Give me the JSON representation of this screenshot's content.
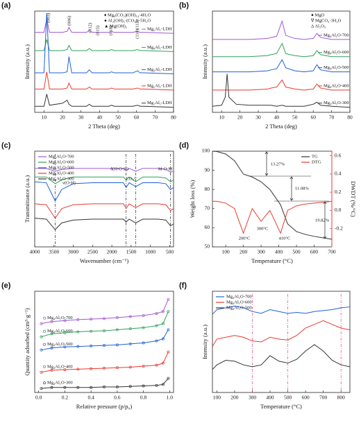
{
  "chart_data": [
    {
      "type": "line",
      "label": "(a)",
      "xlabel": "2 Theta (deg)",
      "ylabel": "Intensity (a.u.)",
      "xlim": [
        5,
        80
      ],
      "xticks": [
        10,
        20,
        30,
        40,
        50,
        60,
        70,
        80
      ],
      "ylim": [
        0,
        100
      ],
      "legend": "curve-end",
      "x": [
        5,
        10,
        11.5,
        13,
        20,
        22.5,
        23.5,
        25,
        33,
        34.5,
        36,
        38.5,
        45,
        46.5,
        48,
        58,
        60.5,
        62,
        64,
        80
      ],
      "series": [
        {
          "name": "Mg₅Al₁-LDH",
          "color": "#a056d6",
          "values": [
            79,
            79,
            92,
            79,
            79,
            80,
            84,
            79,
            79,
            81,
            79,
            79,
            79,
            80,
            79,
            79,
            80,
            79,
            79,
            78
          ]
        },
        {
          "name": "Mg₄Al₁-LDH",
          "color": "#2ca05a",
          "values": [
            61,
            61,
            72,
            61,
            61,
            62,
            66,
            61,
            61,
            63,
            61,
            61,
            61,
            62,
            61,
            61,
            62,
            61,
            61,
            60
          ]
        },
        {
          "name": "Mg₃Al₁-LDH",
          "color": "#1f5fd6",
          "values": [
            39,
            39,
            98,
            39,
            39,
            40,
            55,
            39,
            39,
            42,
            39,
            39,
            39,
            40,
            39,
            39,
            41,
            39,
            39,
            38
          ]
        },
        {
          "name": "Mg₂Al₁-LDH",
          "color": "#e8392f",
          "values": [
            23,
            23,
            40,
            23,
            23,
            24,
            29,
            23,
            23,
            25,
            23,
            23,
            23,
            24,
            23,
            23,
            24,
            23,
            23,
            22
          ]
        },
        {
          "name": "Mg₁Al₁-LDH",
          "color": "#333333",
          "values": [
            6,
            6,
            18,
            7,
            9,
            12,
            8,
            6,
            6,
            8,
            6,
            6,
            6,
            7,
            6,
            6,
            7,
            6,
            6,
            5
          ]
        }
      ],
      "annotations": [
        "♦ Mg₆(CO₃)(OH)₁₄·4H₂O",
        "● Al₂(OH)₅·(CO₃)₂·5H₂O",
        "▲ Mg(OH)₂",
        "(003)",
        "(006)",
        "(012)",
        "(015)",
        "(018)",
        "(110)(113)"
      ]
    },
    {
      "type": "line",
      "label": "(b)",
      "xlabel": "2 Theta (deg)",
      "ylabel": "Intensity (a.u.)",
      "xlim": [
        5,
        80
      ],
      "xticks": [
        10,
        20,
        30,
        40,
        50,
        60,
        70,
        80
      ],
      "ylim": [
        0,
        100
      ],
      "legend": "curve-end",
      "x": [
        5,
        10,
        12,
        13,
        14,
        18,
        25,
        35,
        37,
        40,
        43,
        45,
        50,
        55,
        60,
        62,
        64,
        70,
        80
      ],
      "series": [
        {
          "name": "Mg₄Al₁O-700",
          "color": "#a056d6",
          "values": [
            72,
            72,
            72,
            72,
            72,
            72,
            72,
            73,
            74,
            75,
            90,
            76,
            73,
            72,
            73,
            78,
            74,
            72,
            72
          ]
        },
        {
          "name": "Mg₄Al₁O-600",
          "color": "#2ca05a",
          "values": [
            55,
            55,
            55,
            55,
            55,
            55,
            55,
            56,
            57,
            58,
            68,
            58,
            56,
            55,
            56,
            61,
            57,
            55,
            55
          ]
        },
        {
          "name": "Mg₄Al₁O-500",
          "color": "#1f5fd6",
          "values": [
            40,
            40,
            40,
            40,
            40,
            40,
            40,
            41,
            42,
            43,
            52,
            44,
            41,
            40,
            41,
            47,
            42,
            40,
            40
          ]
        },
        {
          "name": "Mg₄Al₁O-400",
          "color": "#e8392f",
          "values": [
            22,
            22,
            22,
            22,
            22,
            22,
            22,
            23,
            24,
            25,
            32,
            25,
            23,
            22,
            23,
            28,
            24,
            22,
            22
          ]
        },
        {
          "name": "Mg₄Al₁O-300",
          "color": "#333333",
          "values": [
            6,
            7,
            15,
            38,
            15,
            8,
            7,
            7,
            7,
            6,
            7,
            6,
            6,
            6,
            8,
            10,
            7,
            6,
            5
          ]
        }
      ],
      "annotations": [
        "● MgO",
        "∇ MgCO₃·3H₂O",
        "Δ Al₂O₃"
      ]
    },
    {
      "type": "line",
      "label": "(c)",
      "xlabel": "Wavenumber (cm⁻¹)",
      "ylabel": "Transmittance (a.u.)",
      "xlim": [
        4000,
        400
      ],
      "xticks": [
        4000,
        3500,
        3000,
        2500,
        2000,
        1500,
        1000,
        500
      ],
      "ylim": [
        0,
        100
      ],
      "legend": "upper left",
      "x": [
        4000,
        3700,
        3470,
        3300,
        3000,
        2500,
        2000,
        1700,
        1630,
        1550,
        1380,
        1200,
        800,
        600,
        480,
        400
      ],
      "series": [
        {
          "name": "Mg₄Al₁O-700",
          "color": "#a056d6",
          "values": [
            82,
            82,
            79,
            81,
            82,
            82,
            82,
            82,
            80,
            82,
            79,
            82,
            82,
            81,
            78,
            79
          ]
        },
        {
          "name": "Mg₄Al₁O-600",
          "color": "#2ca05a",
          "values": [
            73,
            73,
            66,
            70,
            73,
            73,
            73,
            73,
            70,
            73,
            68,
            73,
            73,
            72,
            68,
            70
          ]
        },
        {
          "name": "Mg₄Al₁O-500",
          "color": "#1f5fd6",
          "values": [
            68,
            67,
            48,
            60,
            66,
            67,
            67,
            67,
            62,
            67,
            63,
            67,
            67,
            66,
            60,
            62
          ]
        },
        {
          "name": "Mg₄Al₁O-400",
          "color": "#e8392f",
          "values": [
            45,
            44,
            30,
            40,
            44,
            45,
            45,
            45,
            40,
            45,
            41,
            45,
            45,
            44,
            38,
            40
          ]
        },
        {
          "name": "Mg₄Al₁O-300",
          "color": "#333333",
          "values": [
            30,
            29,
            18,
            25,
            28,
            29,
            29,
            29,
            26,
            29,
            25,
            29,
            29,
            28,
            22,
            24
          ]
        }
      ],
      "ref_lines": [
        3470,
        1630,
        1380,
        480
      ],
      "ref_color": "#222222",
      "annotations": [
        "ν(O-H)",
        "δ(H-O-H)",
        "CO₃²⁻",
        "M-O-M"
      ]
    },
    {
      "type": "line",
      "label": "(d)",
      "xlabel": "Temperature (°C)",
      "ylabel": "Weight loss (%)",
      "y2label": "DWDT (%/°C)",
      "xlim": [
        25,
        700
      ],
      "xticks": [
        100,
        200,
        300,
        400,
        500,
        600,
        700
      ],
      "ylim": [
        50,
        100
      ],
      "yticks": [
        50,
        60,
        70,
        80,
        90,
        100
      ],
      "y2lim": [
        -0.4,
        0.65
      ],
      "y2ticks": [
        -0.2,
        {
          "value": 0,
          "label": "0.0"
        },
        0.2,
        0.4,
        0.6
      ],
      "y2color": "#e8392f",
      "legend": "upper right",
      "x": [
        25,
        50,
        100,
        150,
        200,
        250,
        300,
        350,
        410,
        450,
        500,
        550,
        600,
        650,
        700
      ],
      "series": [
        {
          "name": "TG",
          "color": "#333333",
          "values": [
            100,
            99.8,
            98.5,
            95,
            88,
            86.5,
            84,
            80,
            72,
            62,
            58,
            56.5,
            55.5,
            54.7,
            54
          ]
        },
        {
          "name": "DTG",
          "color": "#e8392f",
          "axis": "y2",
          "values": [
            0.1,
            0.1,
            0.08,
            0.02,
            -0.25,
            0.02,
            -0.12,
            0.0,
            -0.25,
            0.0,
            0.05,
            0.07,
            0.08,
            0.09,
            0.1
          ]
        }
      ],
      "annotations": [
        "13.27%",
        "11.08%",
        "19.82%",
        "200°C",
        "300°C",
        "410°C"
      ]
    },
    {
      "type": "line",
      "label": "(e)",
      "xlabel": "Relative pressure (p/p₀)",
      "ylabel": "Quantity adsorbed (cm³·g⁻¹)",
      "xlim": [
        -0.03,
        1.03
      ],
      "xticks": [
        {
          "value": 0,
          "label": "0.0"
        },
        0.2,
        0.4,
        0.6,
        0.8,
        {
          "value": 1,
          "label": "1.0"
        }
      ],
      "ylim": [
        0,
        100
      ],
      "legend": "curve-start",
      "markers": true,
      "x": [
        0.02,
        0.1,
        0.2,
        0.3,
        0.4,
        0.5,
        0.6,
        0.7,
        0.8,
        0.9,
        0.95,
        0.99
      ],
      "series": [
        {
          "name": "Mg₄Al₁O-700",
          "color": "#a056d6",
          "values": [
            68,
            70,
            71,
            72,
            72.5,
            73,
            74,
            75,
            76,
            78,
            80,
            92
          ]
        },
        {
          "name": "Mg₄Al₁O-600",
          "color": "#2ca05a",
          "values": [
            55,
            58,
            59,
            60,
            60.5,
            61,
            62,
            63,
            64,
            66,
            68,
            80
          ]
        },
        {
          "name": "Mg₄Al₁O-500",
          "color": "#1f5fd6",
          "values": [
            42,
            44,
            45,
            45.5,
            46,
            46.5,
            47,
            48,
            49,
            51,
            53,
            62
          ]
        },
        {
          "name": "Mg₄Al₁O-400",
          "color": "#e8392f",
          "values": [
            20,
            22,
            22.5,
            23,
            23.5,
            24,
            24.5,
            25,
            26,
            27,
            29,
            40
          ]
        },
        {
          "name": "Mg₄Al₁O-300",
          "color": "#333333",
          "values": [
            4,
            5,
            5,
            5,
            5,
            5.5,
            5.5,
            6,
            6.5,
            7,
            8,
            14
          ]
        }
      ]
    },
    {
      "type": "line",
      "label": "(f)",
      "xlabel": "Temperature (°C)",
      "ylabel": "Intensity (a.u.)",
      "xlim": [
        75,
        850
      ],
      "xticks": [
        100,
        200,
        300,
        400,
        500,
        600,
        700,
        800
      ],
      "ylim": [
        0,
        110
      ],
      "legend": "upper left",
      "x": [
        75,
        100,
        150,
        200,
        250,
        300,
        350,
        400,
        450,
        500,
        550,
        600,
        650,
        700,
        750,
        800,
        850
      ],
      "series": [
        {
          "name": "Mg₄Al₁O-700",
          "color": "#1f5fd6",
          "values": [
            85,
            90,
            92,
            94,
            92,
            88,
            86,
            90,
            88,
            86,
            87,
            86,
            88,
            89,
            90,
            92,
            93
          ]
        },
        {
          "name": "Mg₄Al₁O-600",
          "color": "#e8392f",
          "values": [
            50,
            58,
            60,
            62,
            60,
            56,
            55,
            60,
            58,
            57,
            62,
            70,
            74,
            78,
            74,
            70,
            68
          ]
        },
        {
          "name": "Mg₄Al₁O-500",
          "color": "#333333",
          "values": [
            25,
            30,
            35,
            34,
            30,
            28,
            30,
            40,
            34,
            32,
            36,
            45,
            52,
            45,
            35,
            30,
            28
          ]
        }
      ],
      "ref_lines": [
        300,
        500,
        800
      ],
      "ref_color": "#e0457b"
    }
  ]
}
